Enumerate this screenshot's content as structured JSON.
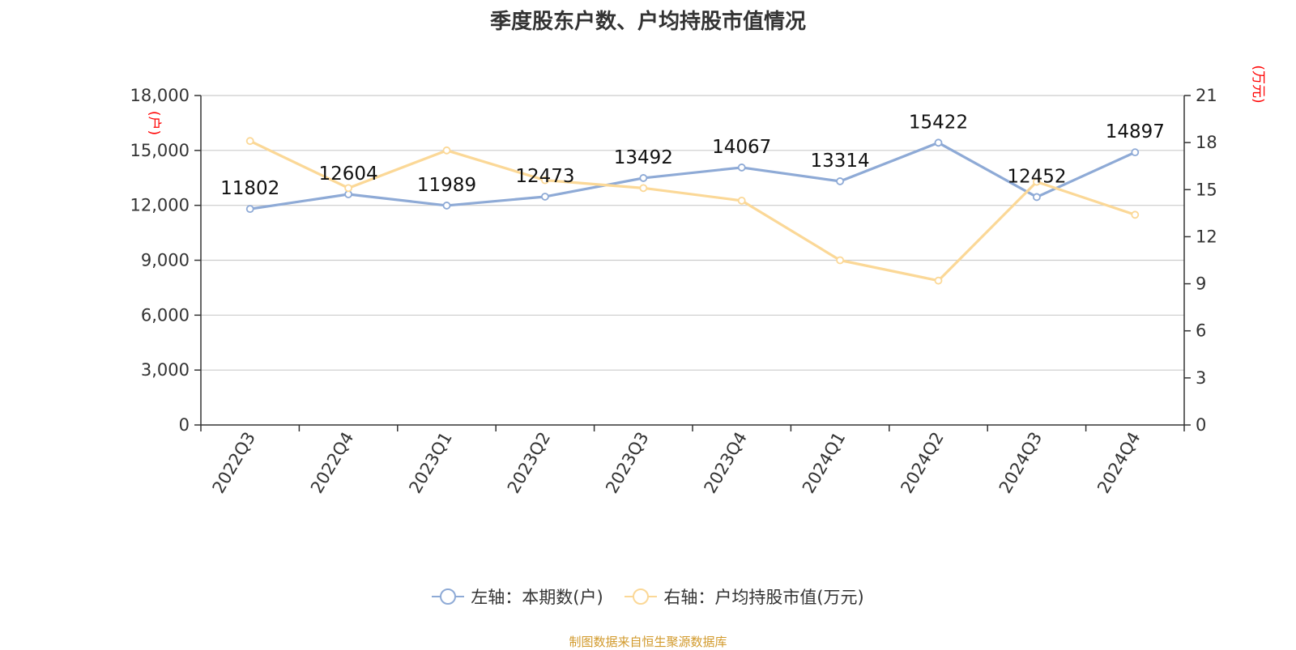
{
  "title": "季度股东户数、户均持股市值情况",
  "source": "制图数据来自恒生聚源数据库",
  "colors": {
    "left_series": "#8eaad6",
    "right_series": "#fbd897",
    "unit_label": "#ff0000",
    "axis": "#333333",
    "grid": "#cccccc"
  },
  "chart_data": {
    "type": "line",
    "categories": [
      "2022Q3",
      "2022Q4",
      "2023Q1",
      "2023Q2",
      "2023Q3",
      "2023Q4",
      "2024Q1",
      "2024Q2",
      "2024Q3",
      "2024Q4"
    ],
    "y_left": {
      "label": "(户)",
      "range": [
        0,
        18000
      ],
      "ticks": [
        0,
        3000,
        6000,
        9000,
        12000,
        15000,
        18000
      ],
      "tick_labels": [
        "0",
        "3,000",
        "6,000",
        "9,000",
        "12,000",
        "15,000",
        "18,000"
      ]
    },
    "y_right": {
      "label": "(万元)",
      "range": [
        0,
        21
      ],
      "ticks": [
        0,
        3,
        6,
        9,
        12,
        15,
        18,
        21
      ],
      "tick_labels": [
        "0",
        "3",
        "6",
        "9",
        "12",
        "15",
        "18",
        "21"
      ]
    },
    "grid": true,
    "legend_position": "bottom",
    "series": [
      {
        "name": "左轴：本期数(户)",
        "axis": "left",
        "values": [
          11802,
          12604,
          11989,
          12473,
          13492,
          14067,
          13314,
          15422,
          12452,
          14897
        ],
        "data_labels": [
          "11802",
          "12604",
          "11989",
          "12473",
          "13492",
          "14067",
          "13314",
          "15422",
          "12452",
          "14897"
        ]
      },
      {
        "name": "右轴：户均持股市值(万元)",
        "axis": "right",
        "values": [
          18.1,
          15.1,
          17.5,
          15.6,
          15.1,
          14.3,
          10.5,
          9.2,
          15.5,
          13.4
        ]
      }
    ]
  }
}
